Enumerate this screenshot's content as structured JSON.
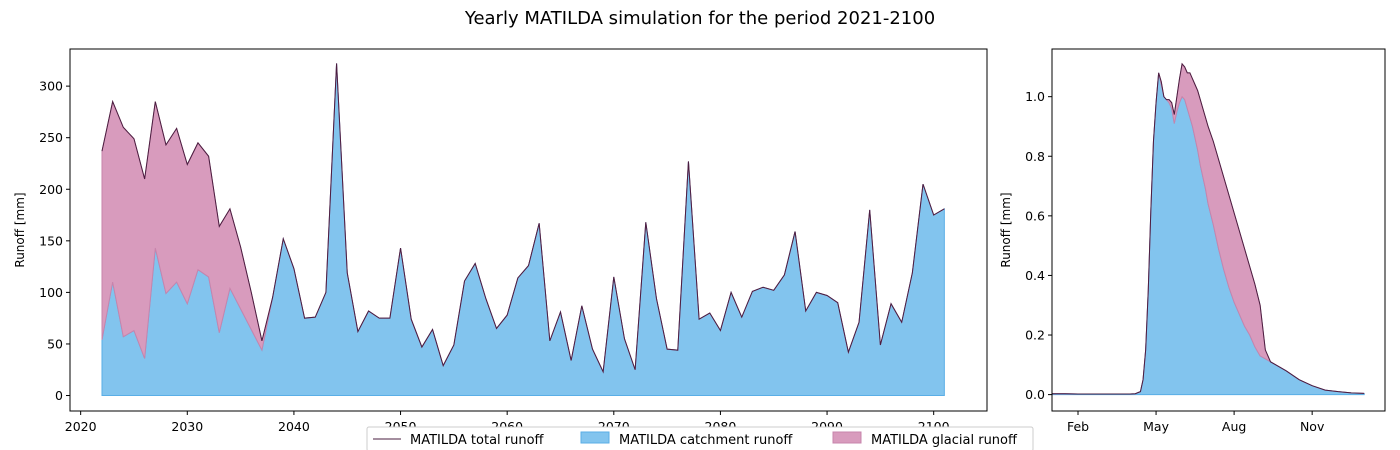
{
  "figure": {
    "title": "Yearly MATILDA simulation for the period 2021-2100"
  },
  "colors": {
    "catchment": "#82c4ee",
    "catchment_edge": "#5aaee6",
    "glacial": "#d89bbd",
    "glacial_edge": "#c784ac",
    "total": "#4a1d3f"
  },
  "legend": {
    "items": [
      "MATILDA total runoff",
      "MATILDA catchment runoff",
      "MATILDA glacial runoff"
    ],
    "placement": "bottom-center"
  },
  "chart_data": [
    {
      "type": "area",
      "ylabel": "Runoff [mm]",
      "xlim": [
        2019,
        2105
      ],
      "ylim": [
        -15,
        336
      ],
      "xticks": [
        2020,
        2030,
        2040,
        2050,
        2060,
        2070,
        2080,
        2090,
        2100
      ],
      "yticks": [
        0,
        50,
        100,
        150,
        200,
        250,
        300
      ],
      "grid": false,
      "x": [
        2022,
        2023,
        2024,
        2025,
        2026,
        2027,
        2028,
        2029,
        2030,
        2031,
        2032,
        2033,
        2034,
        2035,
        2036,
        2037,
        2038,
        2039,
        2040,
        2041,
        2042,
        2043,
        2044,
        2045,
        2046,
        2047,
        2048,
        2049,
        2050,
        2051,
        2052,
        2053,
        2054,
        2055,
        2056,
        2057,
        2058,
        2059,
        2060,
        2061,
        2062,
        2063,
        2064,
        2065,
        2066,
        2067,
        2068,
        2069,
        2070,
        2071,
        2072,
        2073,
        2074,
        2075,
        2076,
        2077,
        2078,
        2079,
        2080,
        2081,
        2082,
        2083,
        2084,
        2085,
        2086,
        2087,
        2088,
        2089,
        2090,
        2091,
        2092,
        2093,
        2094,
        2095,
        2096,
        2097,
        2098,
        2099,
        2100,
        2101
      ],
      "series": [
        {
          "name": "MATILDA catchment runoff",
          "values": [
            54,
            110,
            57,
            63,
            36,
            143,
            99,
            110,
            89,
            122,
            115,
            61,
            104,
            84,
            64,
            44,
            95,
            152,
            123,
            75,
            76,
            100,
            322,
            119,
            62,
            82,
            75,
            75,
            143,
            74,
            47,
            64,
            29,
            49,
            111,
            128,
            94,
            65,
            78,
            114,
            126,
            167,
            53,
            81,
            34,
            87,
            45,
            23,
            115,
            55,
            25,
            168,
            94,
            45,
            44,
            227,
            74,
            80,
            63,
            100,
            76,
            101,
            105,
            102,
            117,
            159,
            82,
            100,
            97,
            90,
            42,
            71,
            180,
            49,
            89,
            71,
            119,
            205,
            175,
            181
          ]
        },
        {
          "name": "MATILDA glacial runoff",
          "values": [
            183,
            175,
            203,
            186,
            174,
            142,
            144,
            149,
            135,
            123,
            117,
            103,
            77,
            60,
            36,
            9,
            0,
            0,
            0,
            0,
            0,
            0,
            0,
            0,
            0,
            0,
            0,
            0,
            0,
            0,
            0,
            0,
            0,
            0,
            0,
            0,
            0,
            0,
            0,
            0,
            0,
            0,
            0,
            0,
            0,
            0,
            0,
            0,
            0,
            0,
            0,
            0,
            0,
            0,
            0,
            0,
            0,
            0,
            0,
            0,
            0,
            0,
            0,
            0,
            0,
            0,
            0,
            0,
            0,
            0,
            0,
            0,
            0,
            0,
            0,
            0,
            0,
            0,
            0,
            0
          ]
        },
        {
          "name": "MATILDA total runoff",
          "values": [
            237,
            285,
            260,
            249,
            210,
            285,
            243,
            259,
            224,
            245,
            232,
            164,
            181,
            144,
            100,
            53,
            95,
            152,
            123,
            75,
            76,
            100,
            322,
            119,
            62,
            82,
            75,
            75,
            143,
            74,
            47,
            64,
            29,
            49,
            111,
            128,
            94,
            65,
            78,
            114,
            126,
            167,
            53,
            81,
            34,
            87,
            45,
            23,
            115,
            55,
            25,
            168,
            94,
            45,
            44,
            227,
            74,
            80,
            63,
            100,
            76,
            101,
            105,
            102,
            117,
            159,
            82,
            100,
            97,
            90,
            42,
            71,
            180,
            49,
            89,
            71,
            119,
            205,
            175,
            181
          ]
        }
      ]
    },
    {
      "type": "area",
      "ylabel": "Runoff [mm]",
      "xlim": [
        0,
        12.8
      ],
      "ylim": [
        -0.055,
        1.16
      ],
      "xtick_positions": [
        1,
        4,
        7,
        10
      ],
      "xticks": [
        "Feb",
        "May",
        "Aug",
        "Nov"
      ],
      "yticks": [
        "0.0",
        "0.2",
        "0.4",
        "0.6",
        "0.8",
        "1.0"
      ],
      "ytick_values": [
        0,
        0.2,
        0.4,
        0.6,
        0.8,
        1.0
      ],
      "grid": false,
      "x": [
        0,
        0.5,
        1,
        1.5,
        2,
        2.5,
        3,
        3.2,
        3.4,
        3.5,
        3.6,
        3.7,
        3.8,
        3.9,
        4.0,
        4.1,
        4.2,
        4.3,
        4.4,
        4.5,
        4.6,
        4.7,
        4.8,
        4.9,
        5.0,
        5.1,
        5.2,
        5.3,
        5.4,
        5.5,
        5.6,
        5.7,
        5.8,
        5.9,
        6.0,
        6.2,
        6.4,
        6.6,
        6.8,
        7.0,
        7.2,
        7.4,
        7.6,
        7.8,
        8.0,
        8.2,
        8.4,
        8.6,
        8.8,
        9.0,
        9.5,
        10,
        10.5,
        11,
        11.5,
        12
      ],
      "series": [
        {
          "name": "MATILDA catchment runoff",
          "values": [
            0.003,
            0.003,
            0.002,
            0.002,
            0.002,
            0.002,
            0.002,
            0.003,
            0.01,
            0.05,
            0.15,
            0.35,
            0.62,
            0.85,
            0.98,
            1.08,
            1.04,
            1.0,
            0.99,
            0.98,
            0.96,
            0.91,
            0.95,
            0.98,
            1.0,
            0.99,
            0.96,
            0.93,
            0.9,
            0.86,
            0.82,
            0.77,
            0.73,
            0.69,
            0.64,
            0.57,
            0.49,
            0.42,
            0.36,
            0.31,
            0.27,
            0.23,
            0.2,
            0.16,
            0.13,
            0.12,
            0.11,
            0.1,
            0.09,
            0.08,
            0.05,
            0.03,
            0.015,
            0.01,
            0.006,
            0.004
          ]
        },
        {
          "name": "MATILDA glacial runoff",
          "values": [
            0,
            0,
            0,
            0,
            0,
            0,
            0,
            0,
            0,
            0,
            0,
            0,
            0,
            0,
            0,
            0,
            0.01,
            0.0,
            0.0,
            0.01,
            0.02,
            0.03,
            0.05,
            0.08,
            0.11,
            0.11,
            0.12,
            0.15,
            0.16,
            0.18,
            0.2,
            0.22,
            0.23,
            0.24,
            0.26,
            0.28,
            0.3,
            0.31,
            0.31,
            0.3,
            0.28,
            0.26,
            0.23,
            0.21,
            0.17,
            0.03,
            0.0,
            0.0,
            0.0,
            0.0,
            0.0,
            0.0,
            0.0,
            0.0,
            0.0,
            0.0
          ]
        },
        {
          "name": "MATILDA total runoff",
          "values": [
            0.003,
            0.003,
            0.002,
            0.002,
            0.002,
            0.002,
            0.002,
            0.003,
            0.01,
            0.05,
            0.15,
            0.35,
            0.62,
            0.85,
            0.98,
            1.08,
            1.05,
            1.0,
            0.99,
            0.99,
            0.98,
            0.94,
            1.0,
            1.06,
            1.11,
            1.1,
            1.08,
            1.08,
            1.06,
            1.04,
            1.02,
            0.99,
            0.96,
            0.93,
            0.9,
            0.85,
            0.79,
            0.73,
            0.67,
            0.61,
            0.55,
            0.49,
            0.43,
            0.37,
            0.3,
            0.15,
            0.11,
            0.1,
            0.09,
            0.08,
            0.05,
            0.03,
            0.015,
            0.01,
            0.006,
            0.004
          ]
        }
      ]
    }
  ]
}
